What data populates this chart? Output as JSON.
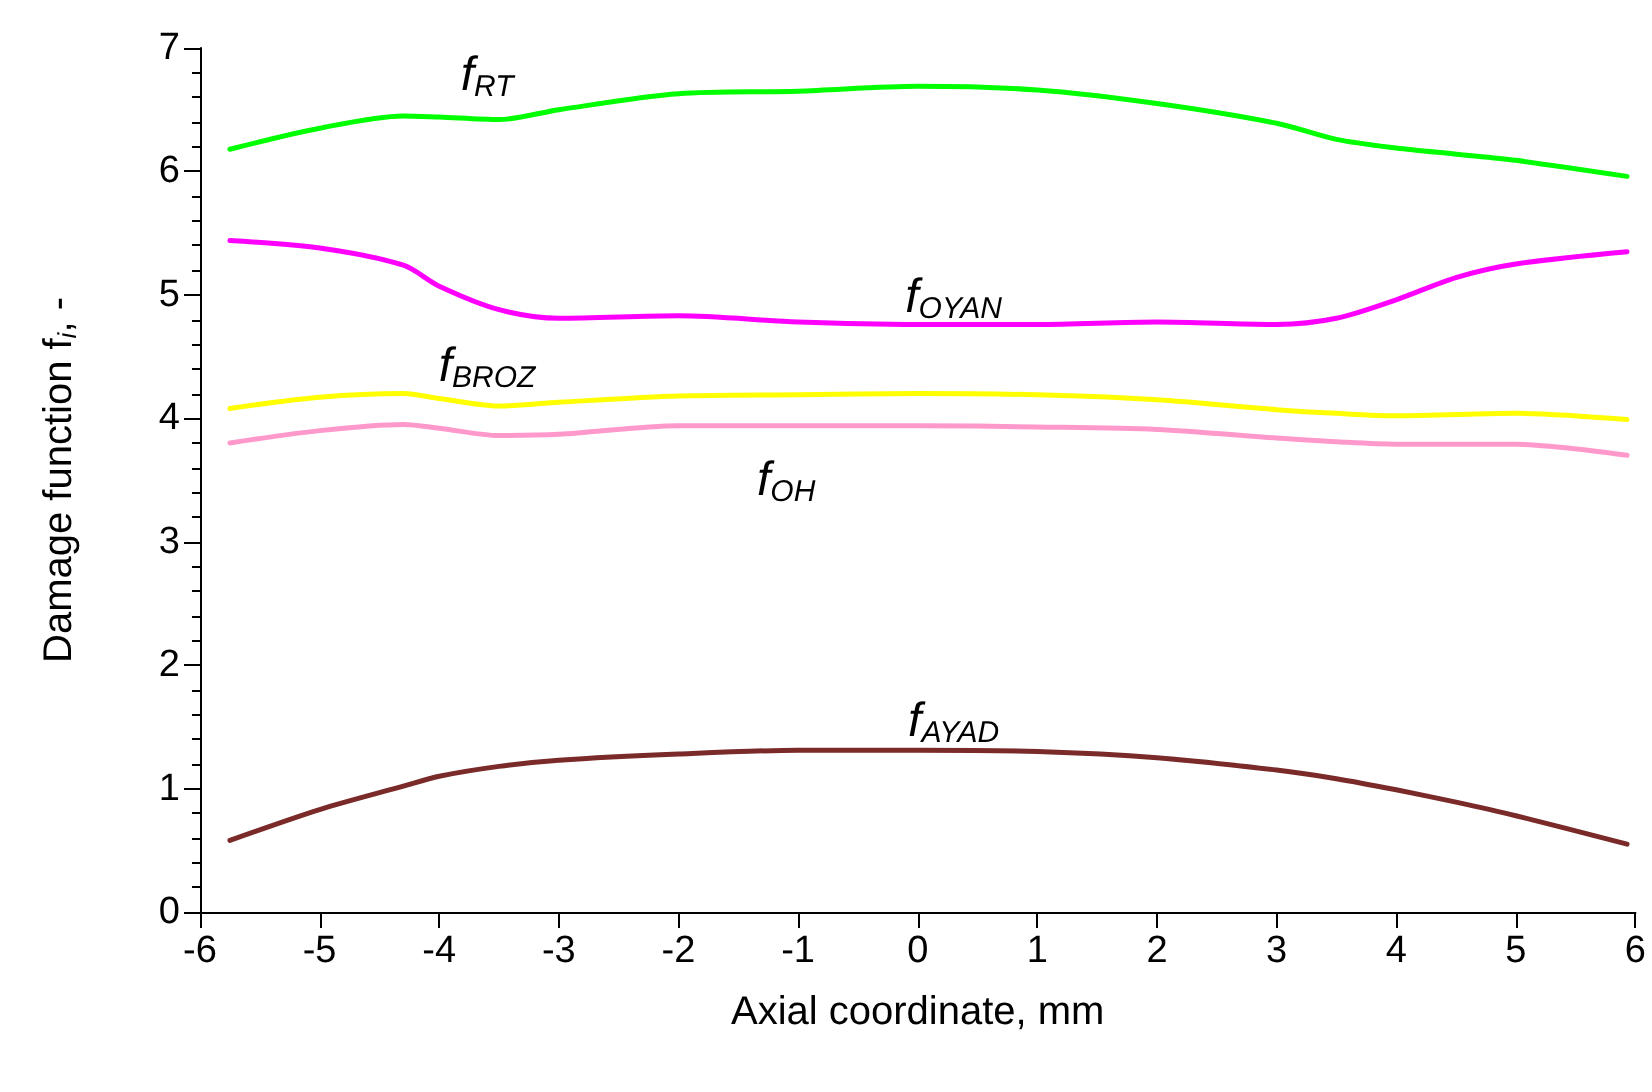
{
  "chart_data": {
    "type": "line",
    "xlabel": "Axial coordinate, mm",
    "ylabel": "Damage function f$_{i}$, -",
    "xlim": [
      -6,
      6
    ],
    "xticks": [
      -6,
      -5,
      -4,
      -3,
      -2,
      -1,
      0,
      1,
      2,
      3,
      4,
      5,
      6
    ],
    "ylim": [
      0,
      7
    ],
    "yticks": [
      0,
      1,
      2,
      3,
      4,
      5,
      6,
      7
    ],
    "grid": false,
    "legend": false,
    "marker": "none",
    "line_style": "solid",
    "x": [
      -5.75,
      -5,
      -4.3,
      -4,
      -3.5,
      -3,
      -2,
      -1,
      0,
      1,
      2,
      3,
      3.5,
      4,
      4.5,
      5,
      5.93
    ],
    "series": [
      {
        "name": "f$_{RT}$",
        "color": "#00ff00",
        "values": [
          6.18,
          6.35,
          6.45,
          6.44,
          6.42,
          6.5,
          6.63,
          6.65,
          6.69,
          6.66,
          6.55,
          6.39,
          6.26,
          6.19,
          6.14,
          6.09,
          5.96
        ]
      },
      {
        "name": "f$_{OYAN}$",
        "color": "#ff00ff",
        "values": [
          5.44,
          5.38,
          5.24,
          5.07,
          4.88,
          4.81,
          4.83,
          4.78,
          4.76,
          4.76,
          4.78,
          4.76,
          4.81,
          4.96,
          5.14,
          5.25,
          5.35
        ]
      },
      {
        "name": "f$_{BROZ}$",
        "color": "#ffff00",
        "values": [
          4.08,
          4.17,
          4.2,
          4.16,
          4.1,
          4.13,
          4.18,
          4.19,
          4.2,
          4.19,
          4.15,
          4.07,
          4.04,
          4.02,
          4.03,
          4.04,
          3.99
        ]
      },
      {
        "name": "f$_{OH}$",
        "color": "#ff99cc",
        "values": [
          3.8,
          3.9,
          3.95,
          3.92,
          3.86,
          3.87,
          3.94,
          3.94,
          3.94,
          3.93,
          3.91,
          3.84,
          3.81,
          3.79,
          3.79,
          3.79,
          3.7
        ]
      },
      {
        "name": "f$_{AYAD}$",
        "color": "#7b2a2a",
        "values": [
          0.58,
          0.83,
          1.02,
          1.1,
          1.18,
          1.23,
          1.28,
          1.31,
          1.31,
          1.3,
          1.25,
          1.15,
          1.08,
          0.99,
          0.89,
          0.78,
          0.55
        ]
      }
    ]
  }
}
